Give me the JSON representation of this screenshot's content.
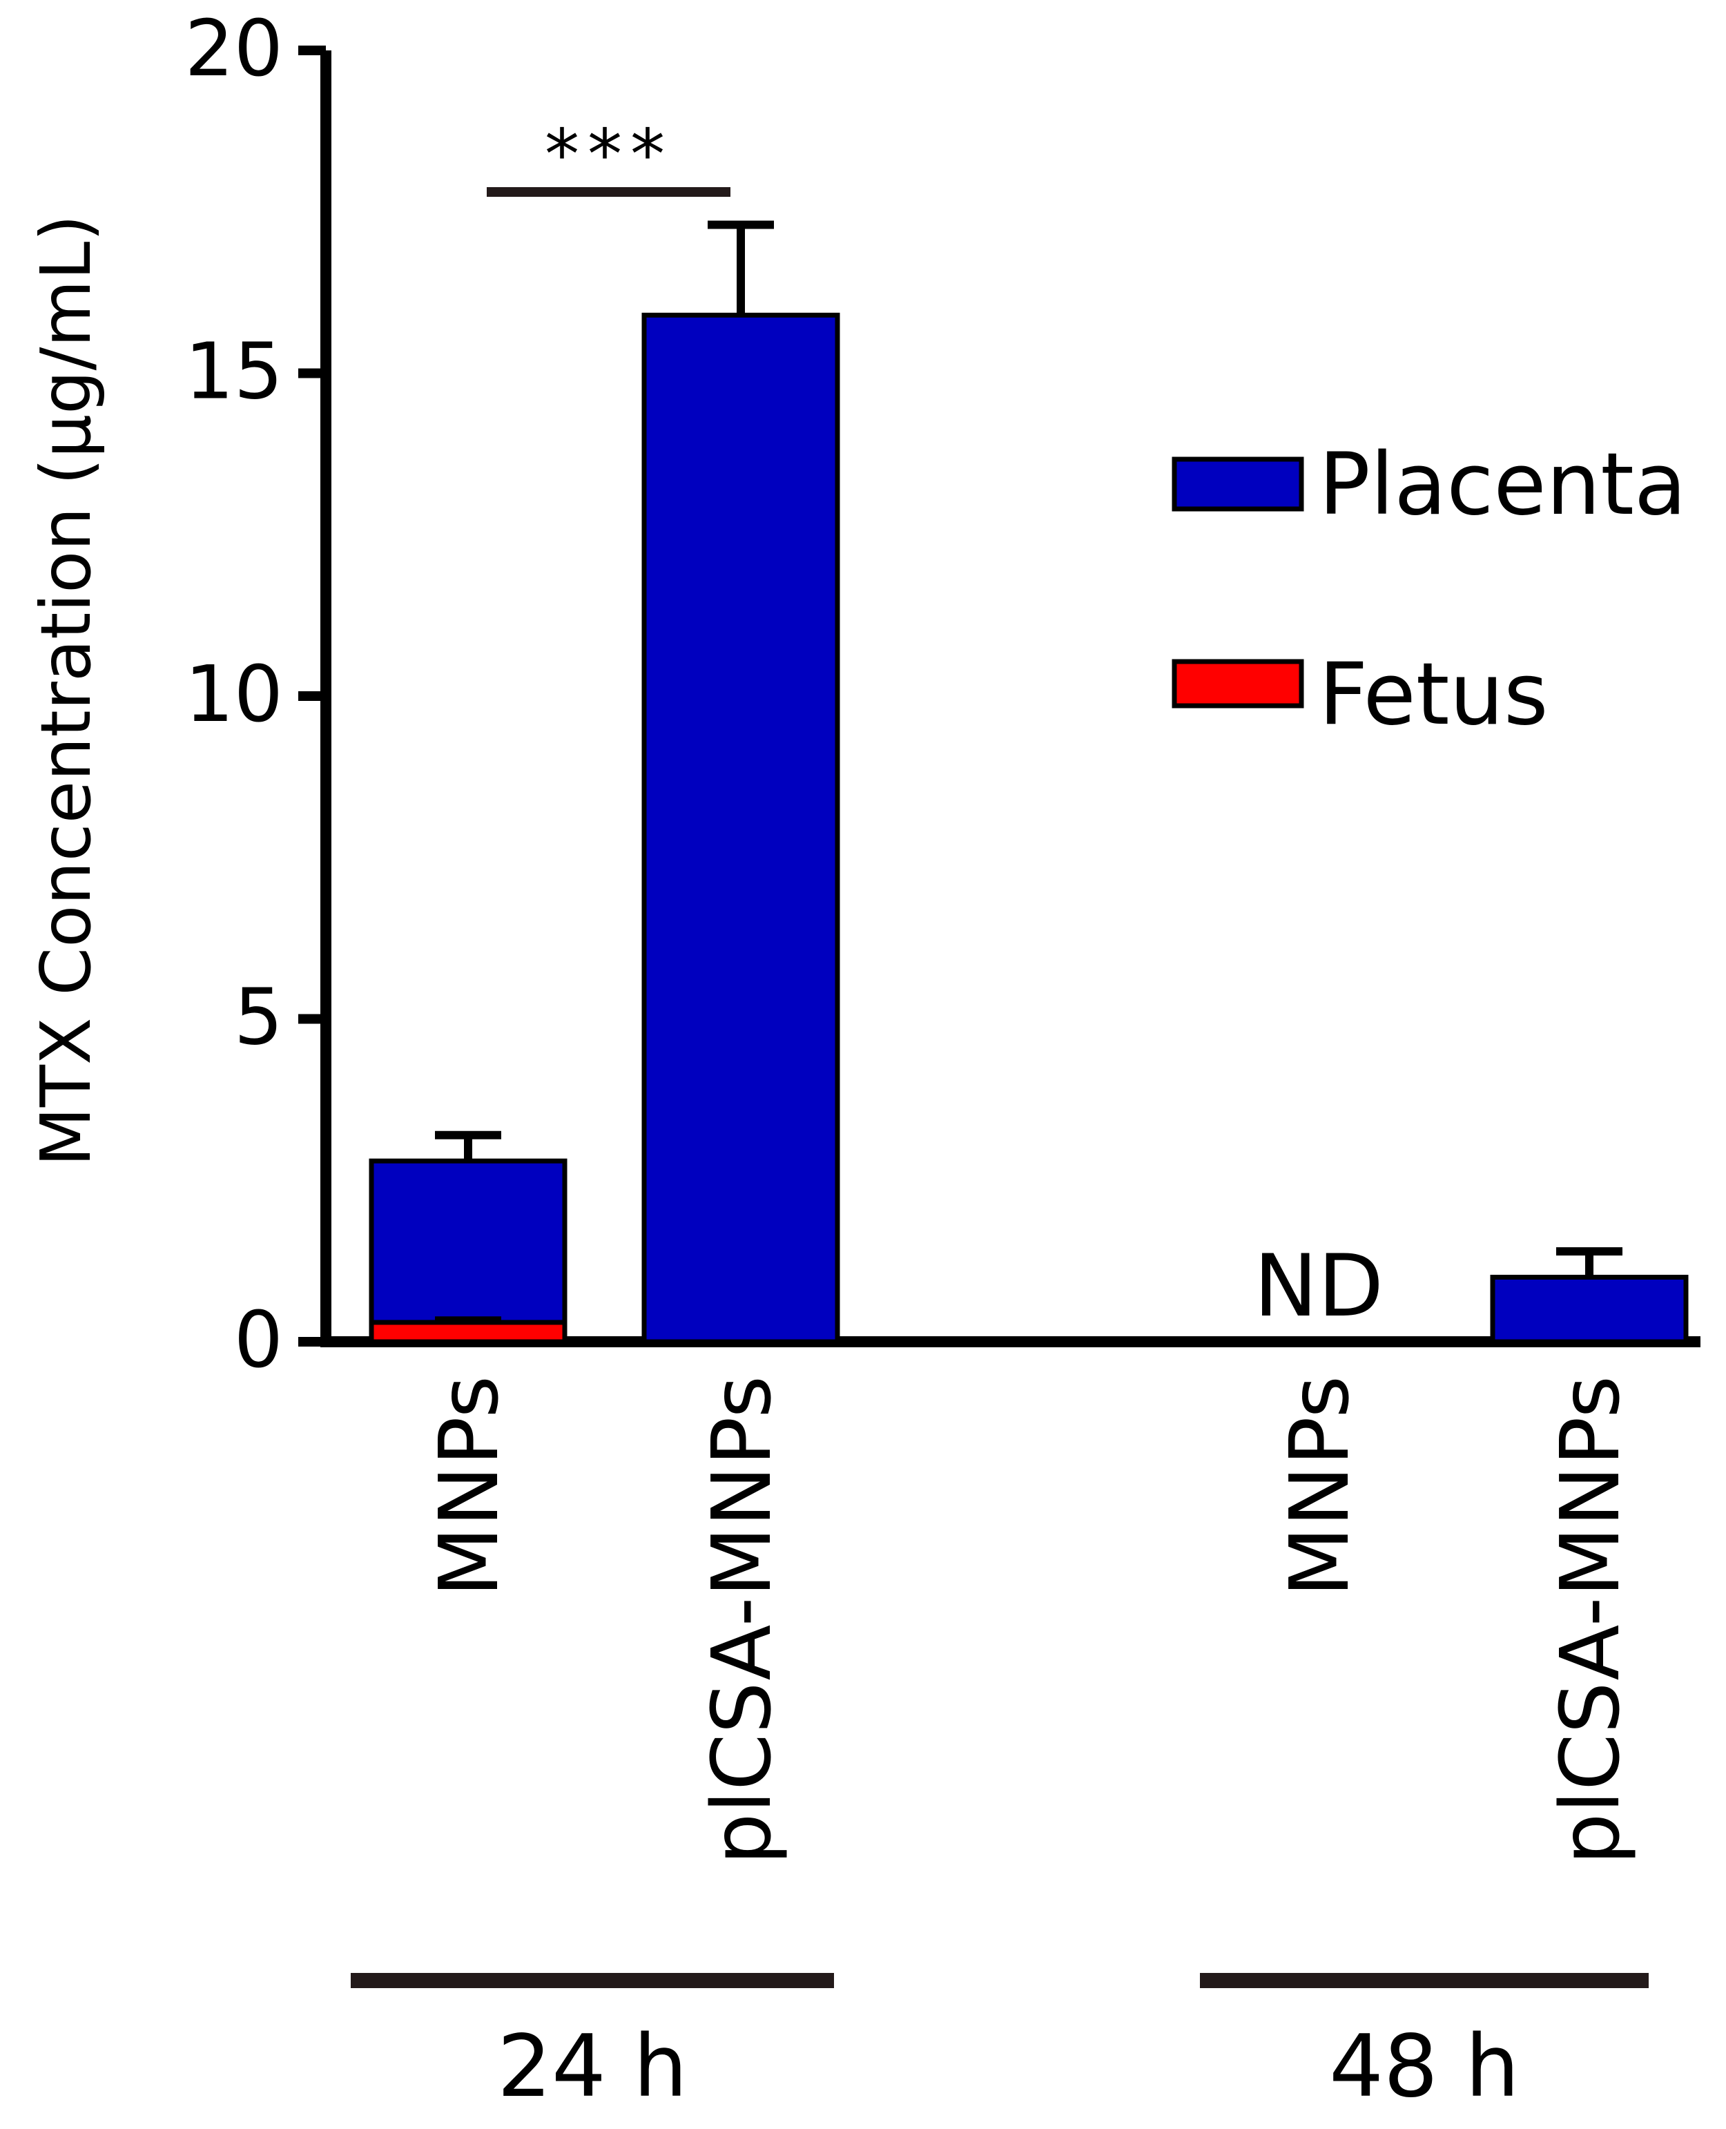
{
  "chart_data": {
    "type": "bar",
    "ylabel": "MTX Concentration (μg/mL)",
    "ylim": [
      0,
      20
    ],
    "yticks": [
      0,
      5,
      10,
      15,
      20
    ],
    "grid": false,
    "legend_position": "top-right",
    "categories": [
      {
        "label": "MNPs",
        "group": "24 h",
        "placenta": 2.8,
        "placenta_error": 0.4,
        "fetus": 0.3,
        "fetus_error": 0.05
      },
      {
        "label": "plCSA-MNPs",
        "group": "24 h",
        "placenta": 15.9,
        "placenta_error": 1.4
      },
      {
        "label": "MNPs",
        "group": "48 h",
        "placenta": null,
        "fetus": null,
        "annotation": "ND"
      },
      {
        "label": "plCSA-MNPs",
        "group": "48 h",
        "placenta": 1.0,
        "placenta_error": 0.4
      }
    ],
    "groups": [
      "24 h",
      "48 h"
    ],
    "series": [
      {
        "name": "Placenta",
        "color": "#0000bf"
      },
      {
        "name": "Fetus",
        "color": "#ff0000"
      }
    ],
    "significance": {
      "label": "***",
      "between": [
        0,
        1
      ]
    }
  }
}
